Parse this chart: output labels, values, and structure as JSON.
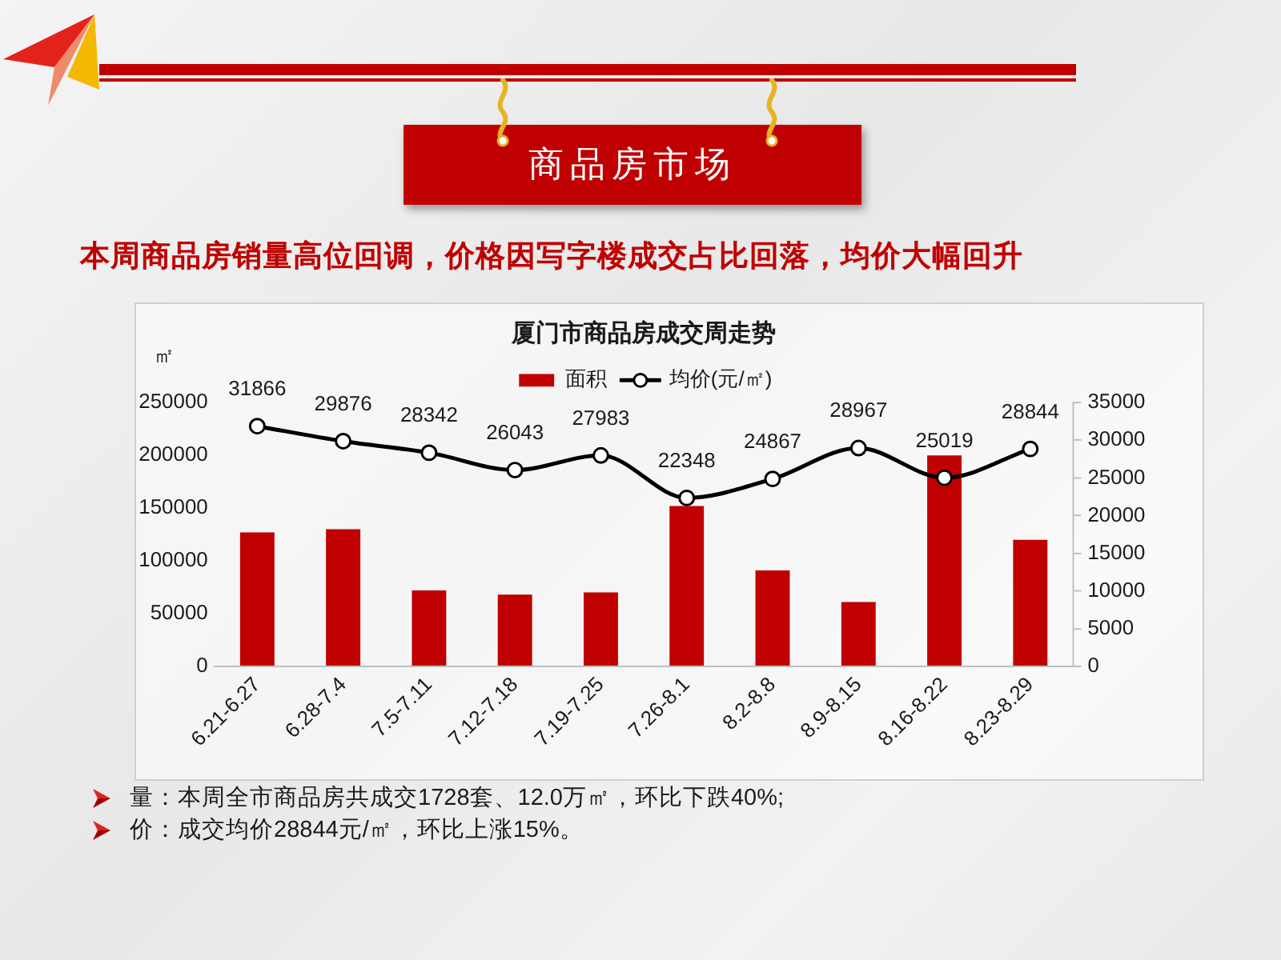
{
  "chart_data": {
    "type": "bar",
    "title": "厦门市商品房成交周走势",
    "ylabel": "㎡",
    "annotations": [
      "商品房市场",
      "本周商品房销量高位回调，价格因写字楼成交占比回落，均价大幅回升",
      "量：本周全市商品房共成交1728套、12.0万㎡，环比下跌40%;",
      "价：成交均价28844元/㎡，环比上涨15%。"
    ],
    "categories": [
      "6.21-6.27",
      "6.28-7.4",
      "7.5-7.11",
      "7.12-7.18",
      "7.19-7.25",
      "7.26-8.1",
      "8.2-8.8",
      "8.9-8.15",
      "8.16-8.22",
      "8.23-8.29"
    ],
    "series": [
      {
        "name": "面积",
        "color": "#c00000",
        "values": [
          127000,
          130000,
          72000,
          68000,
          70000,
          152000,
          91000,
          61000,
          200000,
          120000
        ]
      },
      {
        "name": "均价(元/㎡)",
        "type": "line",
        "axis": "y2",
        "color": "#000000",
        "marker": "circle",
        "values": [
          31866,
          29876,
          28342,
          26043,
          27983,
          22348,
          24867,
          28967,
          25019,
          28844
        ],
        "value_labels": [
          "31866",
          "29876",
          "28342",
          "26043",
          "27983",
          "22348",
          "24867",
          "28967",
          "25019",
          "28844"
        ]
      }
    ],
    "ylim": [
      0,
      250000
    ],
    "yticks": [
      0,
      50000,
      100000,
      150000,
      200000,
      250000
    ],
    "y2lim": [
      0,
      35000
    ],
    "y2ticks": [
      0,
      5000,
      10000,
      15000,
      20000,
      25000,
      30000,
      35000
    ],
    "legend": "top"
  }
}
